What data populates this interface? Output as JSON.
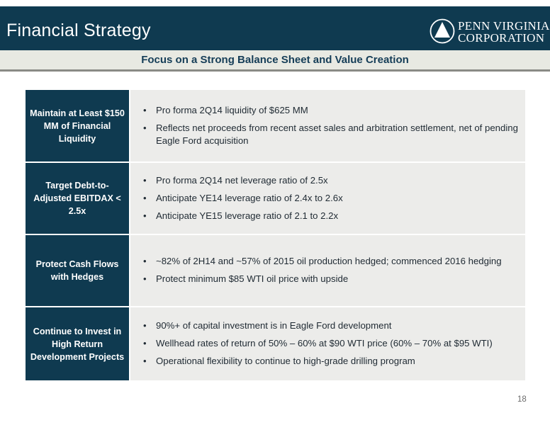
{
  "header": {
    "title": "Financial Strategy",
    "logo_line1": "PENN VIRGINIA",
    "logo_line2": "CORPORATION"
  },
  "subtitle": "Focus on a Strong Balance Sheet and Value Creation",
  "rows": [
    {
      "label": "Maintain at Least $150 MM of Financial Liquidity",
      "bullets": [
        "Pro forma 2Q14 liquidity of $625 MM",
        "Reflects net proceeds from recent asset sales and arbitration settlement, net of pending Eagle Ford acquisition"
      ]
    },
    {
      "label": "Target Debt-to-Adjusted EBITDAX < 2.5x",
      "bullets": [
        "Pro forma 2Q14 net leverage ratio of 2.5x",
        "Anticipate YE14 leverage ratio of 2.4x to 2.6x",
        "Anticipate YE15 leverage ratio of 2.1 to 2.2x"
      ]
    },
    {
      "label": "Protect Cash Flows with Hedges",
      "bullets": [
        "~82% of 2H14 and ~57% of 2015 oil production hedged; commenced 2016 hedging",
        "Protect minimum $85 WTI oil price with upside"
      ]
    },
    {
      "label": "Continue to Invest in High Return Development Projects",
      "bullets": [
        "90%+ of capital investment is in Eagle Ford development",
        "Wellhead rates of return of 50% – 60% at $90 WTI price (60% – 70% at $95 WTI)",
        "Operational flexibility to continue to high-grade drilling program"
      ]
    }
  ],
  "page_number": "18",
  "colors": {
    "header_bg": "#0f3a50",
    "label_bg": "#0f3a50",
    "body_bg": "#ececea",
    "subtitle_text": "#153d57"
  }
}
